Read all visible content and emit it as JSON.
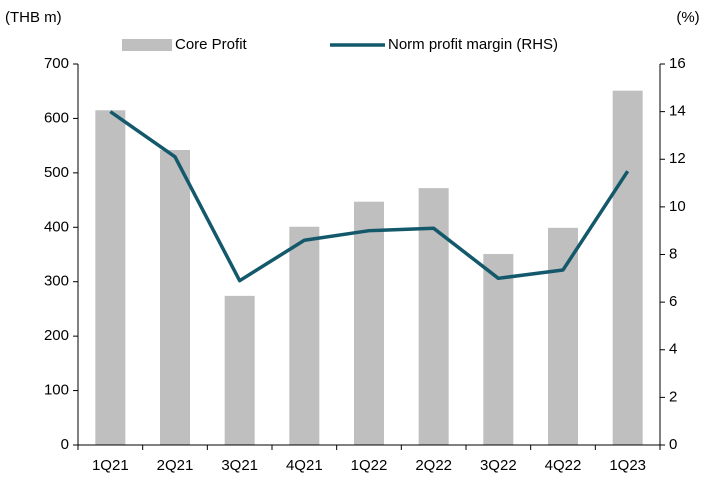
{
  "chart_data": {
    "type": "bar_line",
    "y_label": "(THB m)",
    "y2_label": "(%)",
    "categories": [
      "1Q21",
      "2Q21",
      "3Q21",
      "4Q21",
      "1Q22",
      "2Q22",
      "3Q22",
      "4Q22",
      "1Q23"
    ],
    "series": [
      {
        "name": "Core Profit",
        "type": "bar",
        "color": "#bfbfbf",
        "values": [
          615,
          542,
          274,
          401,
          447,
          472,
          351,
          399,
          651
        ]
      },
      {
        "name": "Norm profit margin (RHS)",
        "type": "line",
        "axis": "y2",
        "color": "#13596b",
        "values": [
          14.0,
          12.1,
          6.9,
          8.6,
          9.0,
          9.1,
          7.0,
          7.35,
          11.5
        ]
      }
    ],
    "ylim": [
      0,
      700
    ],
    "yticks": [
      0,
      100,
      200,
      300,
      400,
      500,
      600,
      700
    ],
    "y2lim": [
      0,
      16
    ],
    "y2ticks": [
      0,
      2,
      4,
      6,
      8,
      10,
      12,
      14,
      16
    ]
  }
}
